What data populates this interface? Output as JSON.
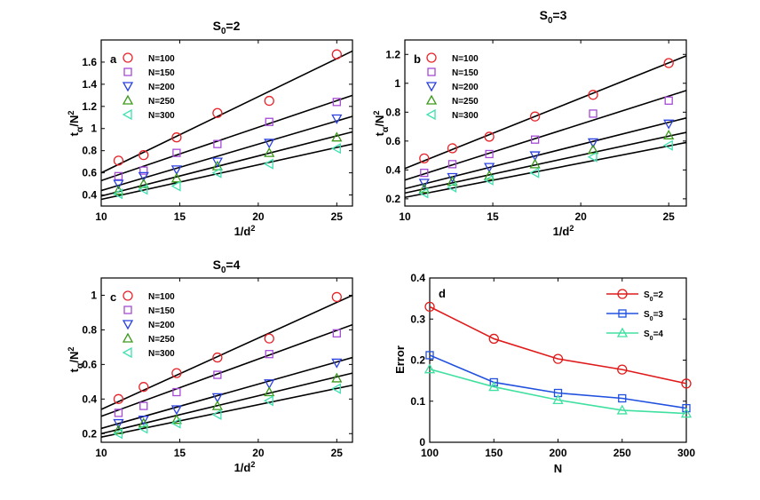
{
  "chart_data": [
    {
      "type": "scatter",
      "panel_label": "a",
      "title": {
        "base": "S",
        "sub": "0",
        "rest": "=2"
      },
      "xlabel": "1/d²",
      "ylabel": "tα/N²",
      "xlim": [
        10,
        26
      ],
      "ylim": [
        0.3,
        1.8
      ],
      "xticks": [
        10,
        15,
        20,
        25
      ],
      "yticks": [
        0.4,
        0.6,
        0.8,
        1,
        1.2,
        1.4,
        1.6
      ],
      "ytick_labels": [
        "0.4",
        "0.6",
        "0.8",
        "1",
        "1.2",
        "1.4",
        "1.6"
      ],
      "x": [
        11.1,
        12.7,
        14.8,
        17.4,
        20.7,
        25
      ],
      "series": [
        {
          "name": "N=100",
          "values": [
            0.71,
            0.76,
            0.92,
            1.14,
            1.25,
            1.67
          ],
          "fit": [
            0.6,
            1.7
          ]
        },
        {
          "name": "N=150",
          "values": [
            0.57,
            0.62,
            0.78,
            0.86,
            1.06,
            1.24
          ],
          "fit": [
            0.53,
            1.3
          ]
        },
        {
          "name": "N=200",
          "values": [
            0.5,
            0.57,
            0.63,
            0.7,
            0.87,
            1.09
          ],
          "fit": [
            0.44,
            1.11
          ]
        },
        {
          "name": "N=250",
          "values": [
            0.44,
            0.5,
            0.55,
            0.66,
            0.78,
            0.92
          ],
          "fit": [
            0.39,
            0.97
          ]
        },
        {
          "name": "N=300",
          "values": [
            0.41,
            0.45,
            0.48,
            0.6,
            0.68,
            0.82
          ],
          "fit": [
            0.36,
            0.86
          ]
        }
      ]
    },
    {
      "type": "scatter",
      "panel_label": "b",
      "title": {
        "base": "S",
        "sub": "0",
        "rest": "=3"
      },
      "xlabel": "1/d²",
      "ylabel": "tα/N²",
      "xlim": [
        10,
        26
      ],
      "ylim": [
        0.15,
        1.3
      ],
      "xticks": [
        10,
        15,
        20,
        25
      ],
      "yticks": [
        0.2,
        0.4,
        0.6,
        0.8,
        1,
        1.2
      ],
      "ytick_labels": [
        "0.2",
        "0.4",
        "0.6",
        "0.8",
        "1",
        "1.2"
      ],
      "x": [
        11.1,
        12.7,
        14.8,
        17.4,
        20.7,
        25
      ],
      "series": [
        {
          "name": "N=100",
          "values": [
            0.48,
            0.55,
            0.63,
            0.77,
            0.92,
            1.14
          ],
          "fit": [
            0.41,
            1.19
          ]
        },
        {
          "name": "N=150",
          "values": [
            0.38,
            0.44,
            0.51,
            0.61,
            0.79,
            0.88
          ],
          "fit": [
            0.33,
            0.95
          ]
        },
        {
          "name": "N=200",
          "values": [
            0.31,
            0.35,
            0.42,
            0.5,
            0.59,
            0.72
          ],
          "fit": [
            0.27,
            0.76
          ]
        },
        {
          "name": "N=250",
          "values": [
            0.27,
            0.32,
            0.36,
            0.44,
            0.54,
            0.64
          ],
          "fit": [
            0.24,
            0.66
          ]
        },
        {
          "name": "N=300",
          "values": [
            0.24,
            0.28,
            0.33,
            0.38,
            0.49,
            0.57
          ],
          "fit": [
            0.21,
            0.59
          ]
        }
      ]
    },
    {
      "type": "scatter",
      "panel_label": "c",
      "title": {
        "base": "S",
        "sub": "0",
        "rest": "=4"
      },
      "xlabel": "1/d²",
      "ylabel": "tα/N²",
      "xlim": [
        10,
        26
      ],
      "ylim": [
        0.15,
        1.1
      ],
      "xticks": [
        10,
        15,
        20,
        25
      ],
      "yticks": [
        0.2,
        0.4,
        0.6,
        0.8,
        1
      ],
      "ytick_labels": [
        "0.2",
        "0.4",
        "0.6",
        "0.8",
        "1"
      ],
      "x": [
        11.1,
        12.7,
        14.8,
        17.4,
        20.7,
        25
      ],
      "series": [
        {
          "name": "N=100",
          "values": [
            0.4,
            0.47,
            0.55,
            0.64,
            0.75,
            0.99
          ],
          "fit": [
            0.34,
            1.0
          ]
        },
        {
          "name": "N=150",
          "values": [
            0.32,
            0.36,
            0.44,
            0.54,
            0.66,
            0.78
          ],
          "fit": [
            0.3,
            0.83
          ]
        },
        {
          "name": "N=200",
          "values": [
            0.26,
            0.28,
            0.34,
            0.41,
            0.49,
            0.61
          ],
          "fit": [
            0.23,
            0.64
          ]
        },
        {
          "name": "N=250",
          "values": [
            0.22,
            0.26,
            0.28,
            0.36,
            0.44,
            0.52
          ],
          "fit": [
            0.2,
            0.55
          ]
        },
        {
          "name": "N=300",
          "values": [
            0.2,
            0.23,
            0.26,
            0.31,
            0.39,
            0.46
          ],
          "fit": [
            0.18,
            0.48
          ]
        }
      ]
    },
    {
      "type": "line",
      "panel_label": "d",
      "xlabel": "N",
      "ylabel": "Error",
      "xlim": [
        100,
        300
      ],
      "ylim": [
        0,
        0.4
      ],
      "xticks": [
        100,
        150,
        200,
        250,
        300
      ],
      "yticks": [
        0,
        0.1,
        0.2,
        0.3,
        0.4
      ],
      "ytick_labels": [
        "0",
        "0.1",
        "0.2",
        "0.3",
        "0.4"
      ],
      "x": [
        100,
        150,
        200,
        250,
        300
      ],
      "series": [
        {
          "name": {
            "base": "S",
            "sub": "0",
            "rest": "=2"
          },
          "values": [
            0.33,
            0.252,
            0.203,
            0.177,
            0.143
          ]
        },
        {
          "name": {
            "base": "S",
            "sub": "0",
            "rest": "=3"
          },
          "values": [
            0.212,
            0.146,
            0.12,
            0.107,
            0.083
          ]
        },
        {
          "name": {
            "base": "S",
            "sub": "0",
            "rest": "=4"
          },
          "values": [
            0.178,
            0.135,
            0.103,
            0.078,
            0.07
          ]
        }
      ]
    }
  ],
  "styles": {
    "scatter_markers": [
      "circle",
      "square",
      "triangle-down",
      "triangle-up",
      "triangle-left"
    ],
    "scatter_colors": [
      "#e8242a",
      "#a64ad6",
      "#2a40e0",
      "#3a9a1a",
      "#40e0b0"
    ],
    "line_markers": [
      "circle",
      "square",
      "triangle-up"
    ],
    "line_colors": [
      "#e01a1a",
      "#2050e0",
      "#40e0a0"
    ]
  }
}
